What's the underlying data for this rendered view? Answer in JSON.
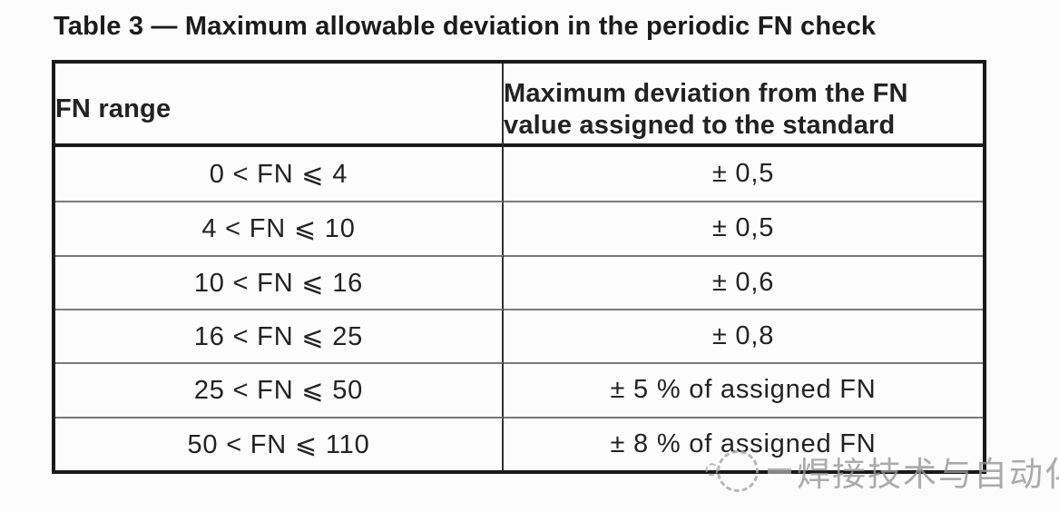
{
  "caption": "Table 3 — Maximum allowable deviation in the periodic FN check",
  "table": {
    "col_headers": {
      "range": "FN range",
      "deviation_line1": "Maximum deviation from the FN",
      "deviation_line2": "value assigned to the standard"
    },
    "rows": [
      {
        "range": "0 < FN ⩽ 4",
        "deviation": "± 0,5"
      },
      {
        "range": "4 < FN ⩽ 10",
        "deviation": "± 0,5"
      },
      {
        "range": "10 < FN ⩽ 16",
        "deviation": "± 0,6"
      },
      {
        "range": "16 < FN ⩽ 25",
        "deviation": "± 0,8"
      },
      {
        "range": "25 < FN ⩽ 50",
        "deviation": "± 5 % of assigned FN"
      },
      {
        "range": "50 < FN ⩽ 110",
        "deviation": "± 8 % of assigned FN"
      }
    ]
  },
  "watermark": {
    "logo": "dashed-circle-logo",
    "text": "焊接技术与自动化"
  },
  "colors": {
    "paper": "#fcfcfc",
    "table_border": "#1a1a1a",
    "row_separator": "#7a7a7a",
    "text": "#222222",
    "watermark_gray": "#979797"
  }
}
